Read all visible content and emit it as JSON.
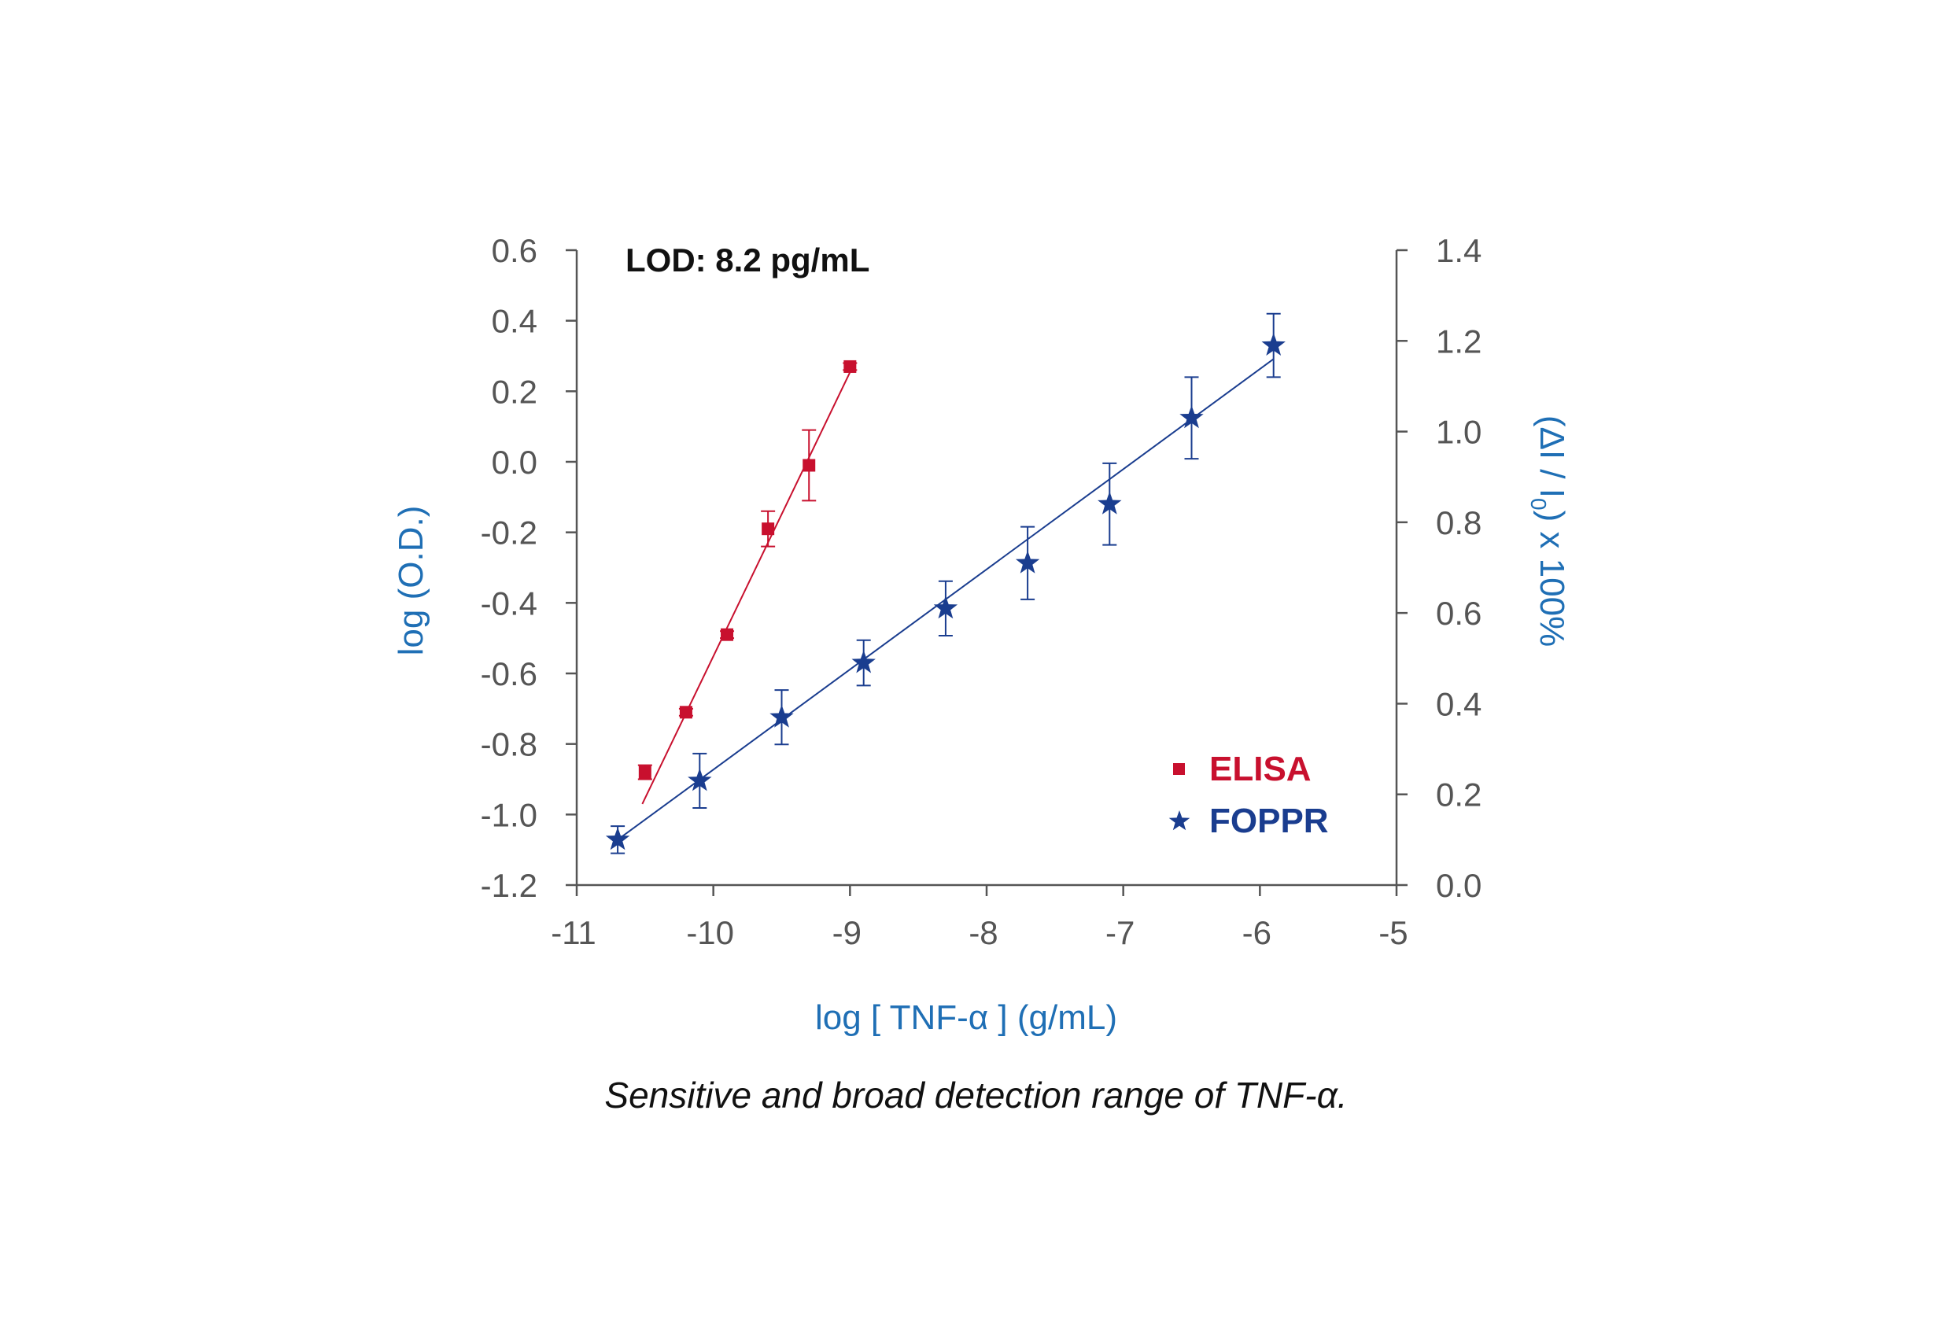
{
  "chart_data": {
    "type": "scatter",
    "annotation": "LOD: 8.2 pg/mL",
    "xlabel": "log [ TNF-α ] (g/mL)",
    "ylabel_left": "log (O.D.)",
    "ylabel_right": {
      "main": "(ΔI / I",
      "sub": "0",
      "tail": ") x 100%"
    },
    "xlim": [
      -11,
      -5
    ],
    "x_ticks": [
      "-11",
      "-10",
      "-9",
      "-8",
      "-7",
      "-6",
      "-5"
    ],
    "ylim_left": [
      -1.2,
      0.6
    ],
    "y_ticks_left": [
      "0.6",
      "0.4",
      "0.2",
      "0.0",
      "-0.2",
      "-0.4",
      "-0.6",
      "-0.8",
      "-1.0",
      "-1.2"
    ],
    "ylim_right": [
      0.0,
      1.4
    ],
    "y_ticks_right": [
      "1.4",
      "1.2",
      "1.0",
      "0.8",
      "0.6",
      "0.4",
      "0.2",
      "0.0"
    ],
    "legend_position": "bottom-right",
    "grid": false,
    "series": [
      {
        "name": "ELISA",
        "axis": "left",
        "marker": "square",
        "color": "#c8102e",
        "x": [
          -10.5,
          -10.2,
          -9.9,
          -9.6,
          -9.3,
          -9.0
        ],
        "y": [
          -0.88,
          -0.71,
          -0.49,
          -0.19,
          -0.01,
          0.27
        ],
        "err": [
          0.02,
          0.01,
          0.01,
          0.05,
          0.1,
          0.01
        ],
        "fit": {
          "x": [
            -10.52,
            -8.98
          ],
          "y": [
            -0.97,
            0.27
          ]
        }
      },
      {
        "name": "FOPPR",
        "axis": "right",
        "marker": "star",
        "color": "#1a3d8f",
        "x": [
          -10.7,
          -10.1,
          -9.5,
          -8.9,
          -8.3,
          -7.7,
          -7.1,
          -6.5,
          -5.9
        ],
        "y": [
          0.1,
          0.23,
          0.37,
          0.49,
          0.61,
          0.71,
          0.84,
          1.03,
          1.19
        ],
        "err": [
          0.03,
          0.06,
          0.06,
          0.05,
          0.06,
          0.08,
          0.09,
          0.09,
          0.07
        ],
        "fit": {
          "x": [
            -10.7,
            -5.9
          ],
          "y": [
            0.1,
            1.16
          ]
        }
      }
    ]
  },
  "caption": "Sensitive and broad detection range of TNF-α."
}
